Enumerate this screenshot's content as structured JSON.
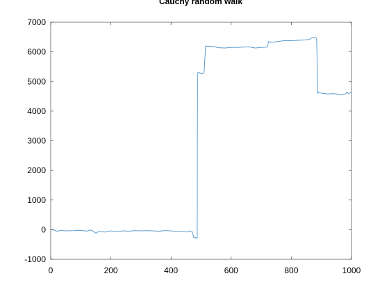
{
  "chart_data": {
    "type": "line",
    "title": "Cauchy random walk",
    "xlabel": "",
    "ylabel": "",
    "xlim": [
      0,
      1000
    ],
    "ylim": [
      -1000,
      7000
    ],
    "xticks": [
      0,
      200,
      400,
      600,
      800,
      1000
    ],
    "yticks": [
      -1000,
      0,
      1000,
      2000,
      3000,
      4000,
      5000,
      6000,
      7000
    ],
    "grid": false,
    "legend": "none",
    "series": [
      {
        "color": "#4a90c8",
        "x": [
          0,
          10,
          25,
          30,
          50,
          80,
          100,
          120,
          130,
          140,
          150,
          160,
          180,
          200,
          220,
          240,
          260,
          280,
          300,
          320,
          340,
          360,
          380,
          400,
          420,
          440,
          455,
          460,
          470,
          476,
          478,
          480,
          482,
          485,
          487,
          488,
          490,
          495,
          500,
          505,
          510,
          515,
          520,
          530,
          540,
          560,
          580,
          600,
          620,
          640,
          660,
          680,
          700,
          720,
          724,
          730,
          740,
          760,
          780,
          800,
          820,
          840,
          860,
          870,
          880,
          884,
          888,
          890,
          895,
          900,
          920,
          940,
          960,
          980,
          985,
          990,
          1000
        ],
        "y": [
          0,
          -10,
          -60,
          -20,
          -40,
          -30,
          -20,
          -50,
          -10,
          -40,
          -120,
          -60,
          -80,
          -40,
          -60,
          -40,
          -50,
          -30,
          -40,
          -30,
          -40,
          -50,
          -30,
          -40,
          -60,
          -60,
          -80,
          -40,
          -60,
          -260,
          -260,
          -280,
          -260,
          -290,
          -290,
          5280,
          5300,
          5290,
          5280,
          5260,
          5320,
          6200,
          6190,
          6190,
          6180,
          6140,
          6130,
          6150,
          6150,
          6160,
          6170,
          6130,
          6150,
          6160,
          6350,
          6320,
          6330,
          6360,
          6380,
          6380,
          6390,
          6400,
          6420,
          6490,
          6480,
          6450,
          4600,
          4640,
          4620,
          4610,
          4580,
          4590,
          4570,
          4580,
          4650,
          4580,
          4660
        ]
      }
    ]
  }
}
